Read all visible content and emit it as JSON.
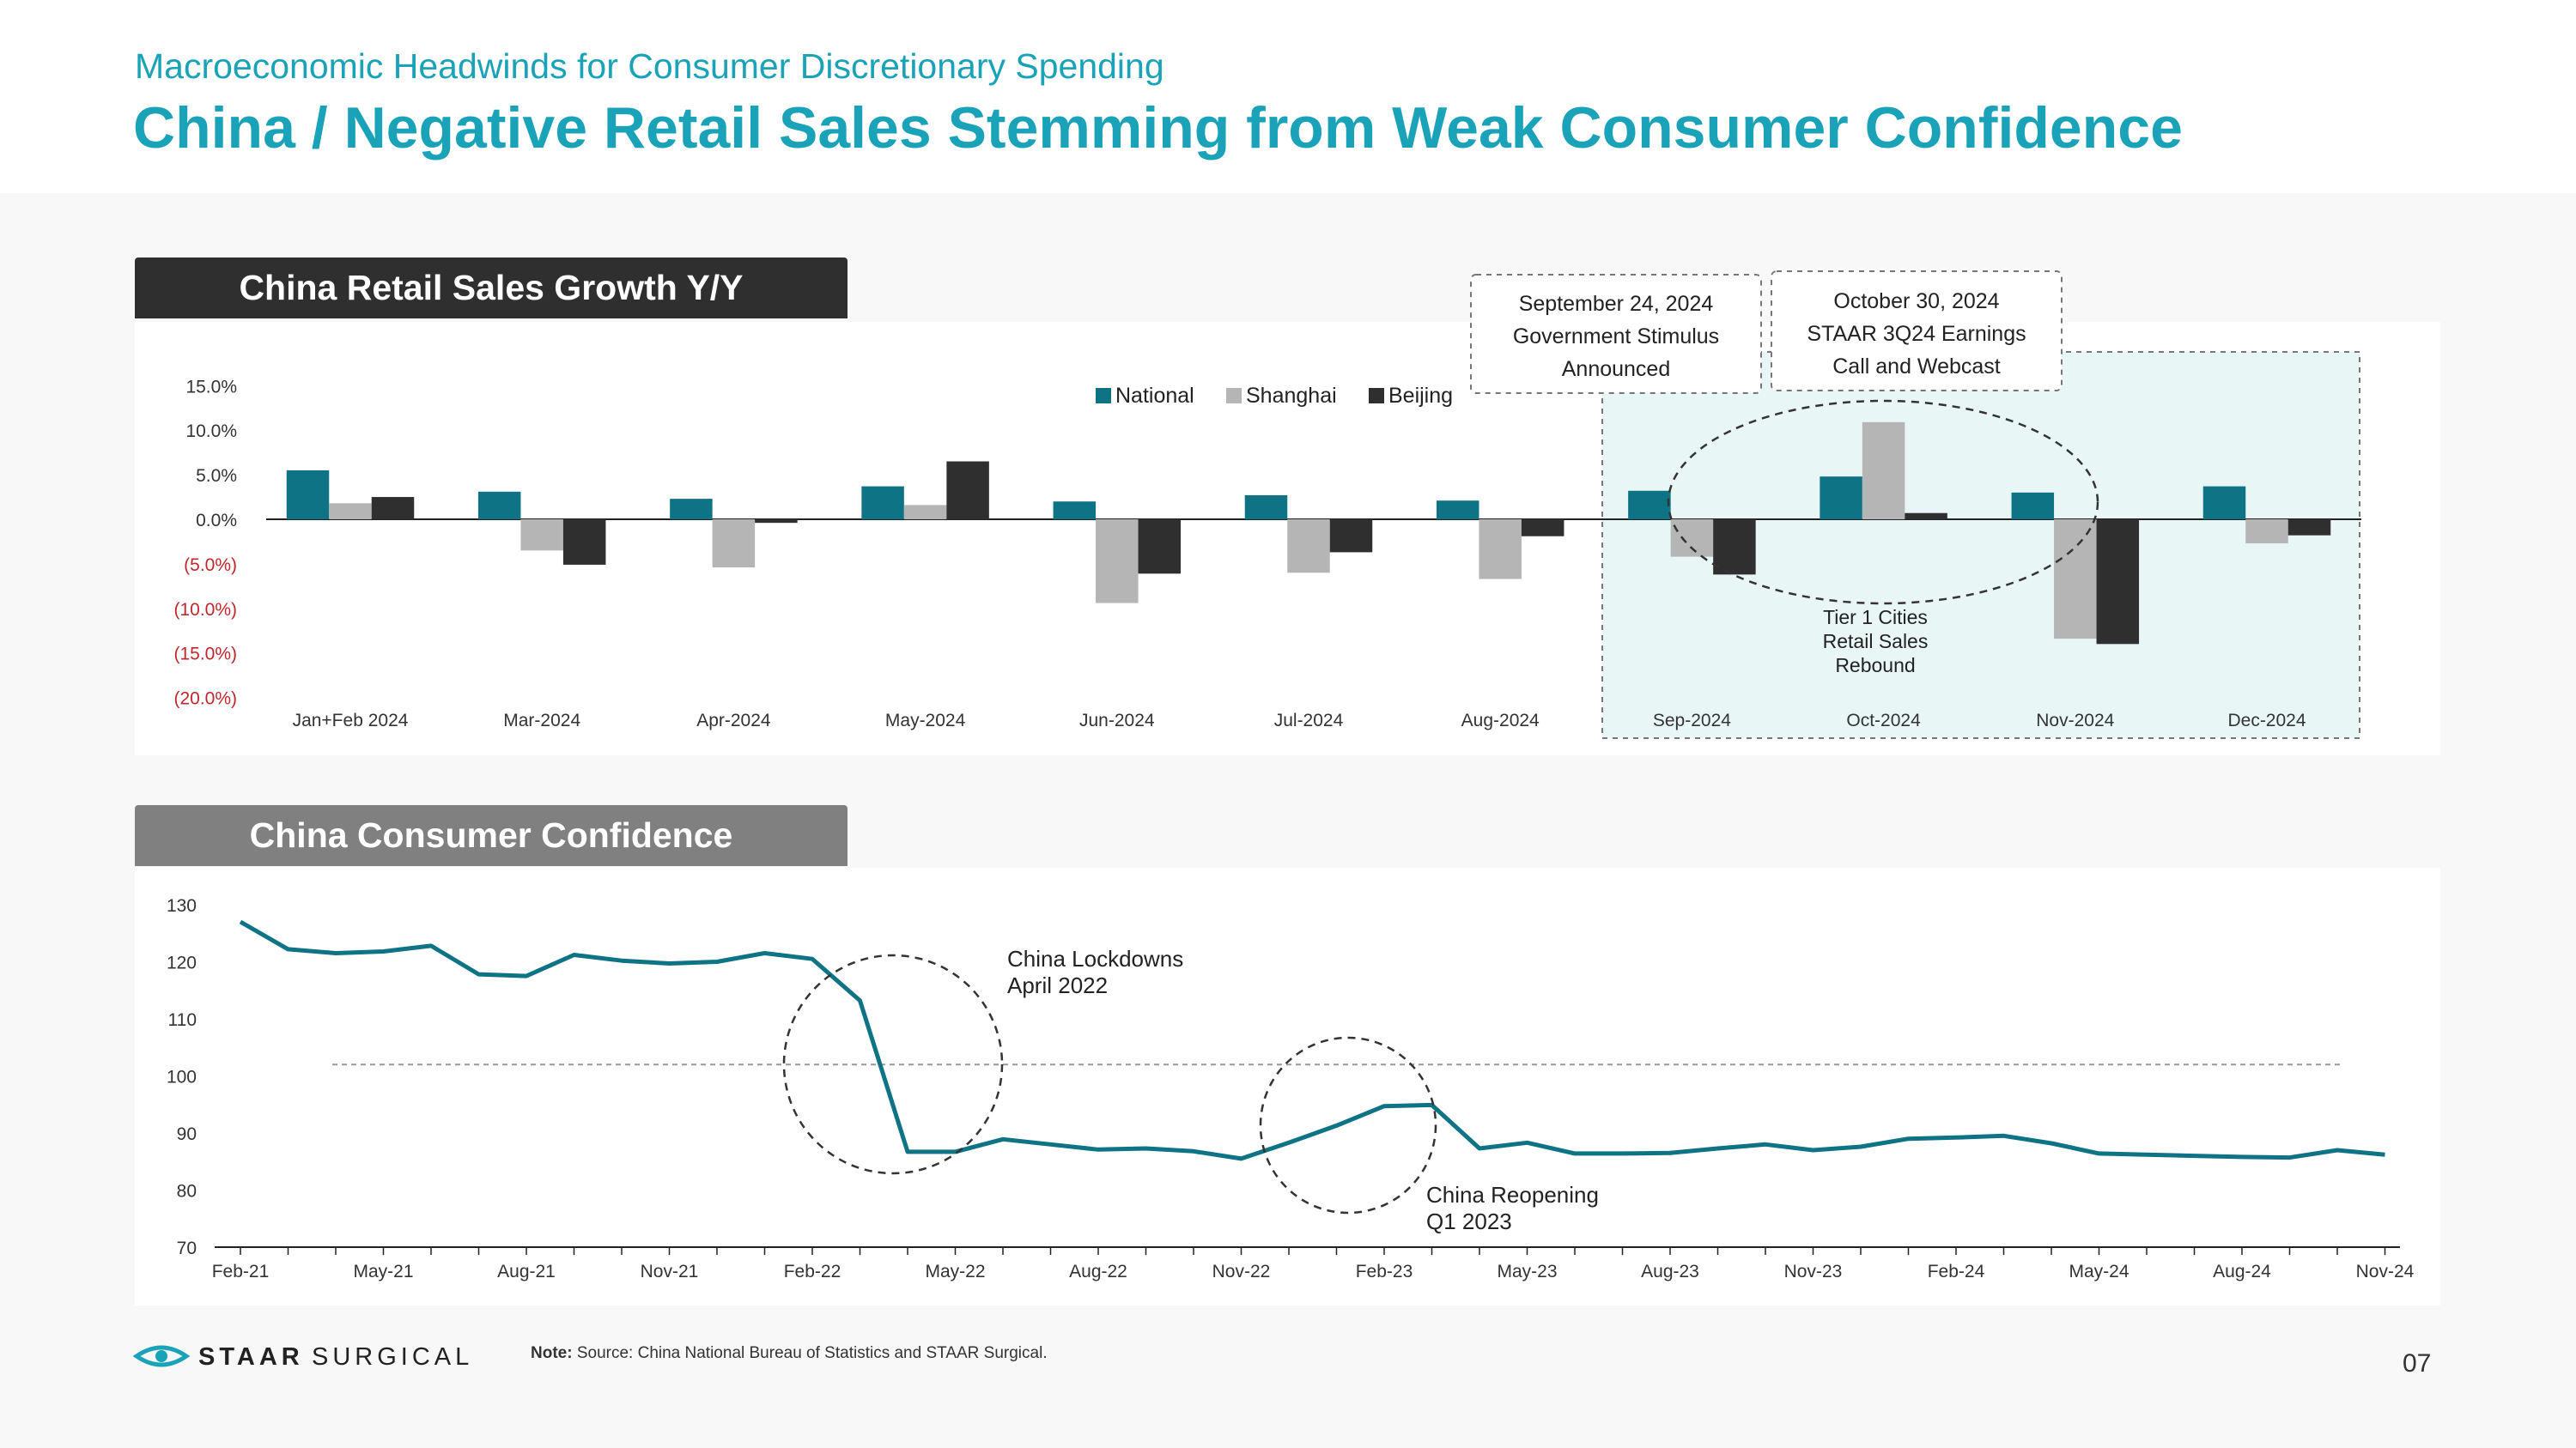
{
  "header": {
    "subtitle": "Macroeconomic Headwinds for Consumer Discretionary Spending",
    "title": "China / Negative Retail Sales Stemming from Weak Consumer Confidence"
  },
  "colors": {
    "teal": "#0e7384",
    "gray": "#b5b5b5",
    "black": "#2f2f2f",
    "accent": "#1aa3b8",
    "negative": "#c0272d"
  },
  "chart_data": [
    {
      "type": "bar",
      "title": "China Retail Sales Growth Y/Y",
      "categories": [
        "Jan+Feb 2024",
        "Mar-2024",
        "Apr-2024",
        "May-2024",
        "Jun-2024",
        "Jul-2024",
        "Aug-2024",
        "Sep-2024",
        "Oct-2024",
        "Nov-2024",
        "Dec-2024"
      ],
      "series": [
        {
          "name": "National",
          "values": [
            5.5,
            3.1,
            2.3,
            3.7,
            2.0,
            2.7,
            2.1,
            3.2,
            4.8,
            3.0,
            3.7
          ]
        },
        {
          "name": "Shanghai",
          "values": [
            1.8,
            -3.5,
            -5.4,
            1.6,
            -9.4,
            -6.0,
            -6.7,
            -4.2,
            10.9,
            -13.4,
            -2.7
          ]
        },
        {
          "name": "Beijing",
          "values": [
            2.5,
            -5.1,
            -0.4,
            6.5,
            -6.1,
            -3.7,
            -1.9,
            -6.2,
            0.7,
            -14.0,
            -1.8
          ]
        }
      ],
      "yticks": [
        "15.0%",
        "10.0%",
        "5.0%",
        "0.0%",
        "(5.0%)",
        "(10.0%)",
        "(15.0%)",
        "(20.0%)"
      ],
      "ylim": [
        -20,
        15
      ],
      "legend_position": "top",
      "annotations": {
        "stimulus": [
          "September 24, 2024",
          "Government Stimulus",
          "Announced"
        ],
        "earnings": [
          "October 30, 2024",
          "STAAR 3Q24 Earnings",
          "Call and Webcast"
        ],
        "tier1": [
          "Tier 1 Cities",
          "Retail Sales",
          "Rebound"
        ]
      }
    },
    {
      "type": "line",
      "title": "China Consumer Confidence",
      "ylim": [
        70,
        130
      ],
      "yticks": [
        "130",
        "120",
        "110",
        "100",
        "90",
        "80",
        "70"
      ],
      "xtick_labels": [
        "Feb-21",
        "May-21",
        "Aug-21",
        "Nov-21",
        "Feb-22",
        "May-22",
        "Aug-22",
        "Nov-22",
        "Feb-23",
        "May-23",
        "Aug-23",
        "Nov-23",
        "Feb-24",
        "May-24",
        "Aug-24",
        "Nov-24"
      ],
      "values": [
        127.0,
        122.2,
        121.5,
        121.8,
        122.8,
        117.8,
        117.5,
        121.2,
        120.2,
        119.7,
        120.0,
        121.5,
        120.5,
        113.2,
        86.7,
        86.7,
        88.9,
        88.0,
        87.1,
        87.3,
        86.8,
        85.5,
        88.3,
        91.3,
        94.7,
        94.9,
        87.3,
        88.3,
        86.4,
        86.4,
        86.5,
        87.3,
        88.0,
        87.0,
        87.6,
        89.0,
        89.2,
        89.5,
        88.2,
        86.4,
        86.2,
        86.0,
        85.8,
        85.7,
        87.0,
        86.2
      ],
      "reference_value": 102,
      "annotations": {
        "lockdowns": [
          "China Lockdowns",
          "April 2022"
        ],
        "reopening": [
          "China Reopening",
          "Q1 2023"
        ]
      }
    }
  ],
  "footer": {
    "logo_bold": "STAAR",
    "logo_light": "SURGICAL",
    "note_label": "Note:",
    "note_text": " Source: China National Bureau of Statistics and STAAR Surgical.",
    "page_number": "07"
  }
}
